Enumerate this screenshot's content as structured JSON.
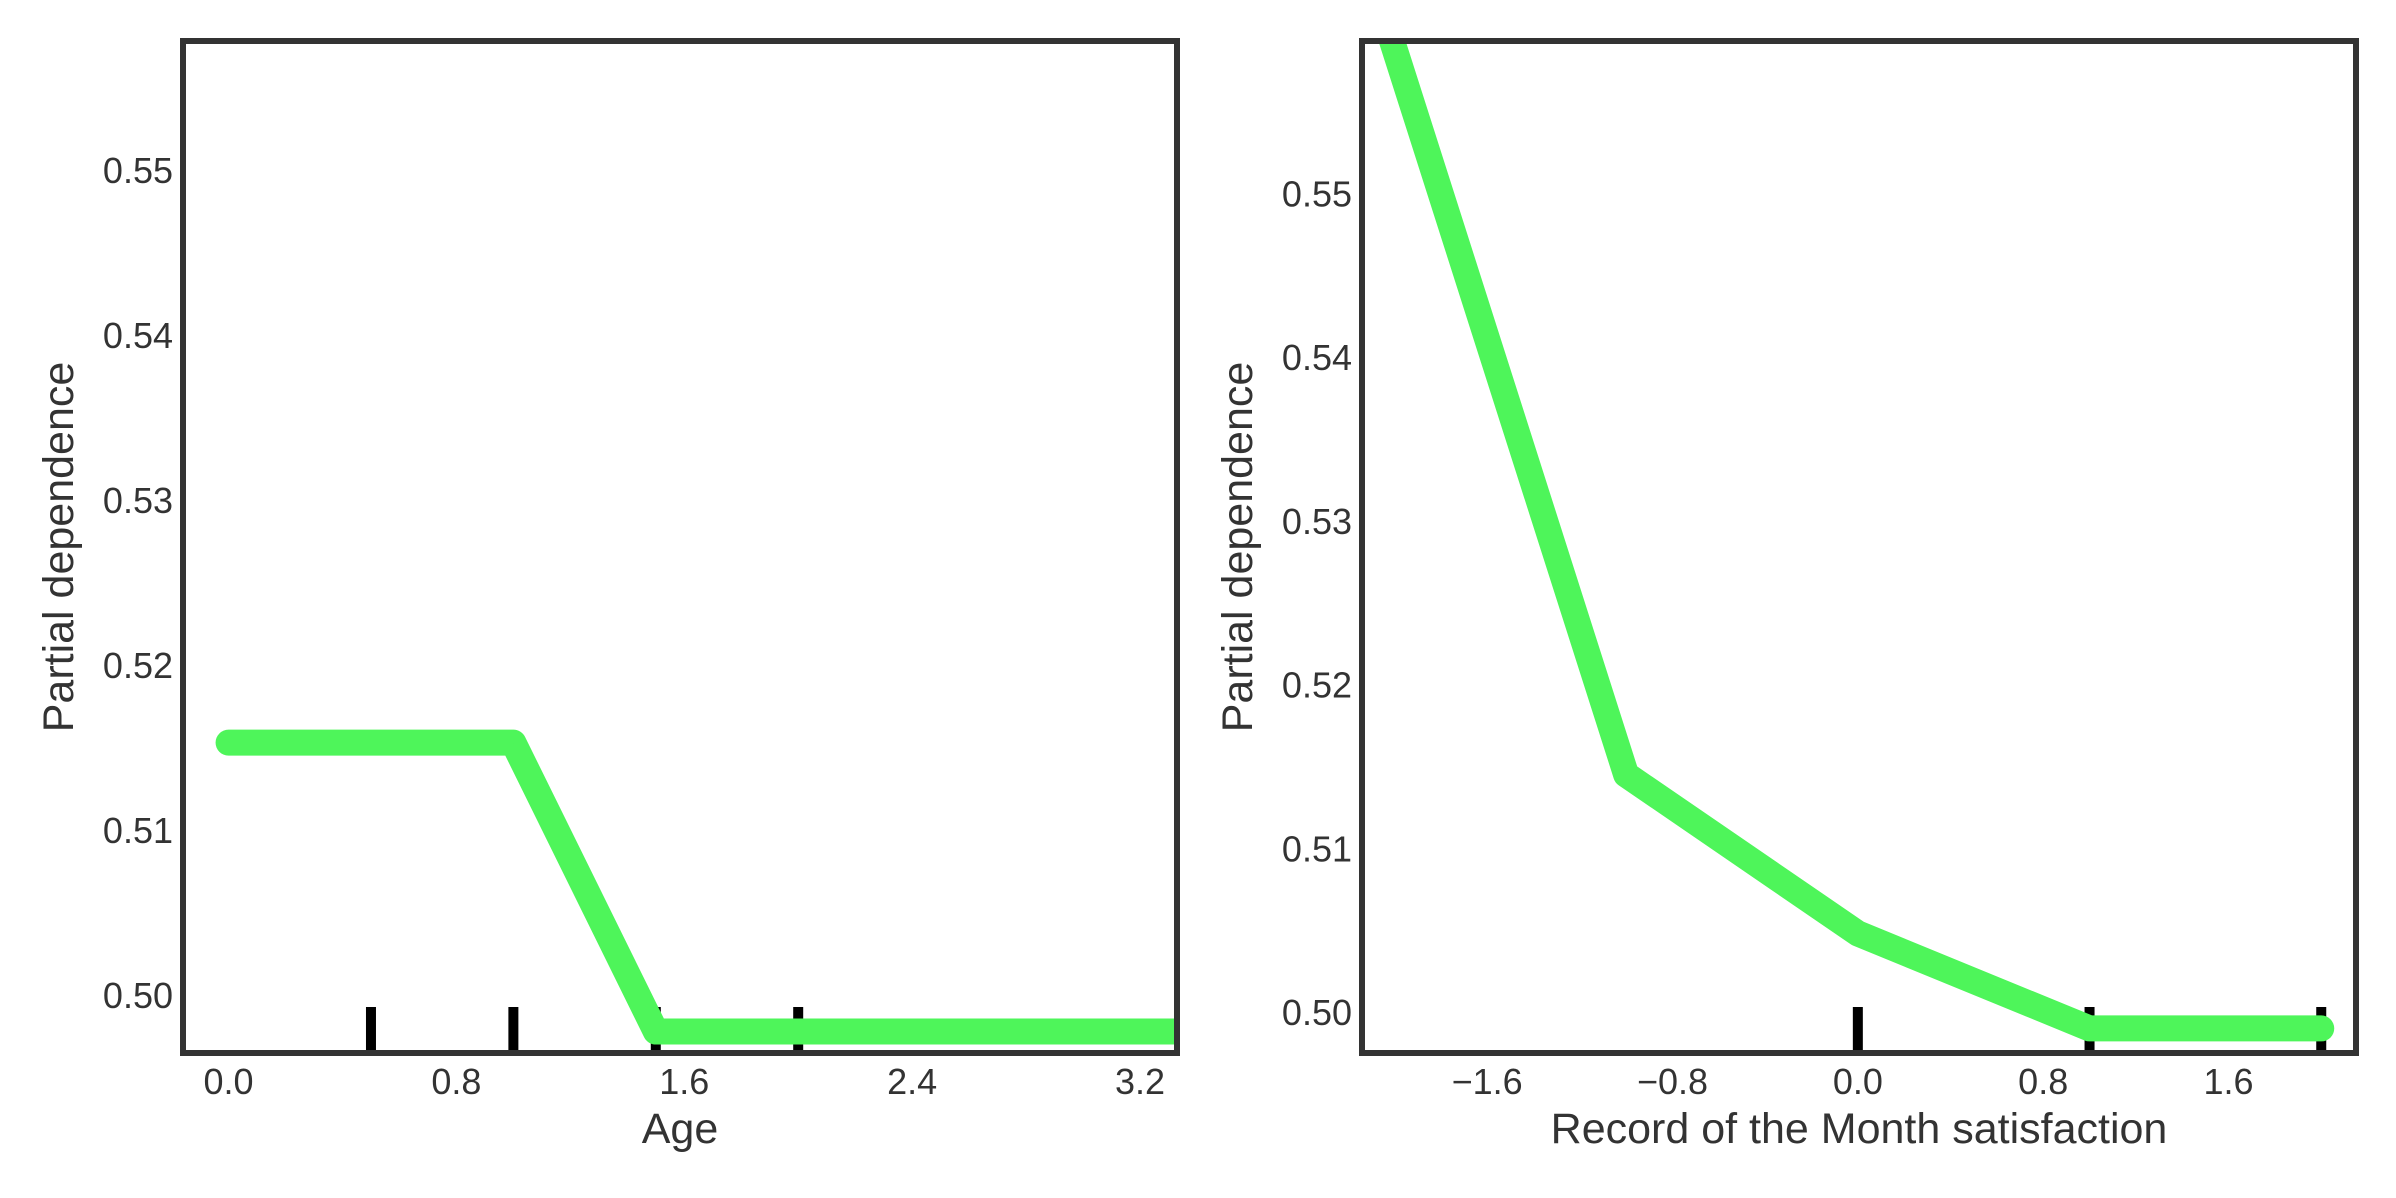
{
  "colors": {
    "line": "#4ef55a",
    "frame": "#333333",
    "rug": "#000000",
    "text": "#333333",
    "background": "#ffffff"
  },
  "chart_data": [
    {
      "type": "line",
      "xlabel": "Age",
      "ylabel": "Partial dependence",
      "xlim": [
        -0.16,
        3.33
      ],
      "ylim": [
        0.4965,
        0.5578
      ],
      "xticks": [
        0.0,
        0.8,
        1.6,
        2.4,
        3.2
      ],
      "xtick_labels": [
        "0.0",
        "0.8",
        "1.6",
        "2.4",
        "3.2"
      ],
      "yticks": [
        0.5,
        0.51,
        0.52,
        0.53,
        0.54,
        0.55
      ],
      "ytick_labels": [
        "0.50",
        "0.51",
        "0.52",
        "0.53",
        "0.54",
        "0.55"
      ],
      "grid": false,
      "series": [
        {
          "x": [
            0.0,
            1.0,
            1.5,
            2.0,
            3.5
          ],
          "y": [
            0.5153,
            0.5153,
            0.4978,
            0.4978,
            0.4978
          ]
        }
      ],
      "rug": [
        0.5,
        1.0,
        1.5,
        2.0
      ]
    },
    {
      "type": "line",
      "xlabel": "Record of the Month satisfaction",
      "ylabel": "Partial dependence",
      "xlim": [
        -2.14,
        2.15
      ],
      "ylim": [
        0.4975,
        0.5593
      ],
      "xticks": [
        -1.6,
        -0.8,
        0.0,
        0.8,
        1.6
      ],
      "xtick_labels": [
        "−1.6",
        "−0.8",
        "0.0",
        "0.8",
        "1.6"
      ],
      "yticks": [
        0.5,
        0.51,
        0.52,
        0.53,
        0.54,
        0.55
      ],
      "ytick_labels": [
        "0.50",
        "0.51",
        "0.52",
        "0.53",
        "0.54",
        "0.55"
      ],
      "grid": false,
      "series": [
        {
          "x": [
            -2.06,
            -1.0,
            0.0,
            1.0,
            2.0
          ],
          "y": [
            0.5615,
            0.5145,
            0.5048,
            0.499,
            0.499
          ]
        }
      ],
      "rug": [
        0.0,
        1.0,
        2.0
      ]
    }
  ]
}
